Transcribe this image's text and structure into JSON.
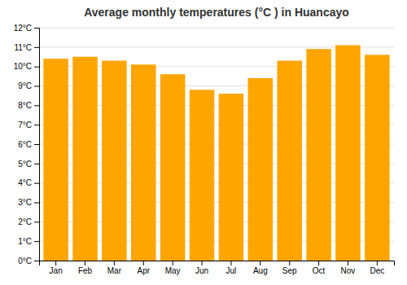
{
  "chart_data": {
    "type": "bar",
    "title": "Average monthly temperatures (°C ) in Huancayo",
    "categories": [
      "Jan",
      "Feb",
      "Mar",
      "Apr",
      "May",
      "Jun",
      "Jul",
      "Aug",
      "Sep",
      "Oct",
      "Nov",
      "Dec"
    ],
    "values": [
      10.4,
      10.5,
      10.3,
      10.1,
      9.6,
      8.8,
      8.6,
      9.4,
      10.3,
      10.9,
      11.1,
      10.6
    ],
    "color": "#FFA500",
    "ylim": [
      0,
      12
    ],
    "yticks": [
      {
        "value": 0,
        "label": "0°C"
      },
      {
        "value": 1,
        "label": "1°C"
      },
      {
        "value": 2,
        "label": "2°C"
      },
      {
        "value": 3,
        "label": "3°C"
      },
      {
        "value": 4,
        "label": "4°C"
      },
      {
        "value": 5,
        "label": "5°C"
      },
      {
        "value": 6,
        "label": "6°C"
      },
      {
        "value": 7,
        "label": "7°C"
      },
      {
        "value": 8,
        "label": "8°C"
      },
      {
        "value": 9,
        "label": "9°C"
      },
      {
        "value": 10,
        "label": "10°C"
      },
      {
        "value": 11,
        "label": "11°C"
      },
      {
        "value": 12,
        "label": "12°C"
      }
    ],
    "grid": true
  }
}
